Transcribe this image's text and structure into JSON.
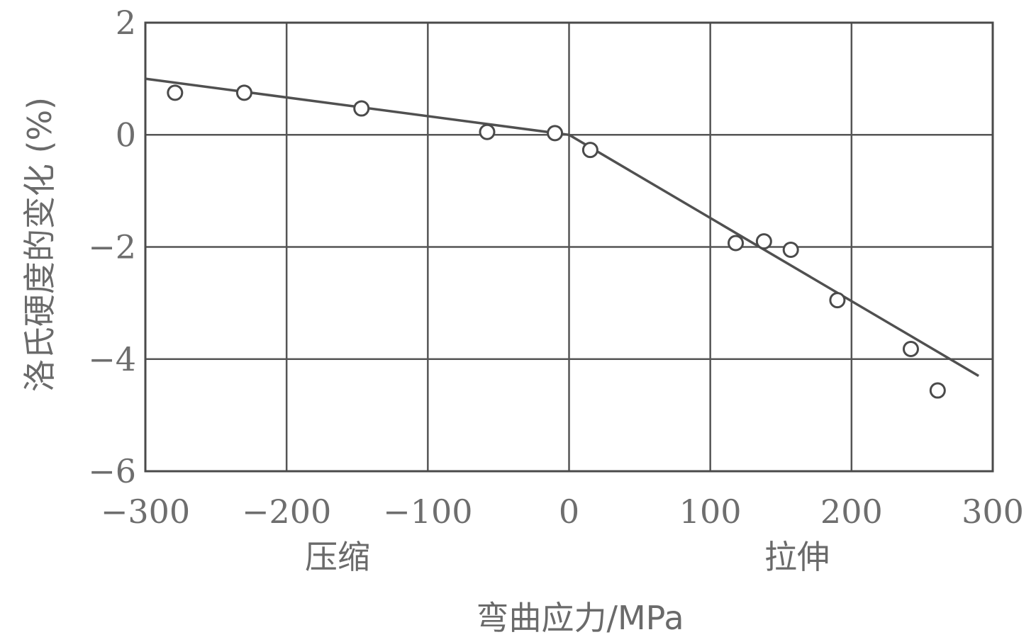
{
  "chart_data": {
    "type": "scatter",
    "title": "",
    "xlabel": "弯曲应力/MPa",
    "ylabel": "洛氏硬度的变化 (%)",
    "xlim": [
      -300,
      300
    ],
    "ylim": [
      -6,
      2
    ],
    "x_ticks": [
      -300,
      -200,
      -100,
      0,
      100,
      200,
      300
    ],
    "x_tick_labels": [
      "−300",
      "−200",
      "−100",
      "0",
      "100",
      "200",
      "300"
    ],
    "y_ticks": [
      2,
      0,
      -2,
      -4,
      -6
    ],
    "y_tick_labels": [
      "2",
      "0",
      "−2",
      "−4",
      "−6"
    ],
    "grid": true,
    "region_labels": {
      "compression": "压缩",
      "tension": "拉伸"
    },
    "series": [
      {
        "values": [
          {
            "x": -279,
            "y": 0.75
          },
          {
            "x": -230,
            "y": 0.75
          },
          {
            "x": -147,
            "y": 0.47
          },
          {
            "x": -58,
            "y": 0.05
          },
          {
            "x": -10,
            "y": 0.03
          },
          {
            "x": 15,
            "y": -0.27
          },
          {
            "x": 118,
            "y": -1.93
          },
          {
            "x": 138,
            "y": -1.9
          },
          {
            "x": 157,
            "y": -2.05
          },
          {
            "x": 190,
            "y": -2.95
          },
          {
            "x": 242,
            "y": -3.82
          },
          {
            "x": 261,
            "y": -4.56
          }
        ]
      }
    ],
    "fit_line": [
      {
        "x": -300,
        "y": 1.0
      },
      {
        "x": 0,
        "y": 0.0
      },
      {
        "x": 290,
        "y": -4.3
      }
    ]
  }
}
